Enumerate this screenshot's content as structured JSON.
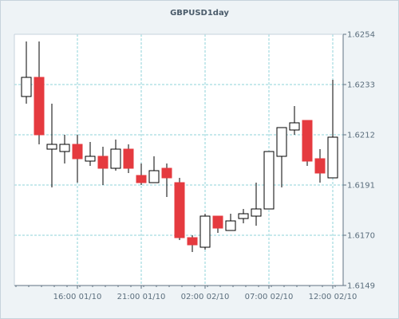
{
  "chart_data": {
    "type": "candlestick",
    "title": "GBPUSD1day",
    "y_ticks": [
      "1.6254",
      "1.6233",
      "1.6212",
      "1.6191",
      "1.6170",
      "1.6149"
    ],
    "x_ticks": [
      "16:00 01/10",
      "21:00 01/10",
      "02:00 02/10",
      "07:00 02/10",
      "12:00 02/10"
    ],
    "ylim": [
      1.6149,
      1.6254
    ],
    "grid": true,
    "colors": {
      "up_fill": "#ffffff",
      "down_fill": "#e53a3f",
      "wick": "#000000",
      "grid": "#8fd3da",
      "axis": "#5f7282"
    },
    "candles": [
      {
        "open": 1.6228,
        "high": 1.6251,
        "low": 1.6225,
        "close": 1.6236
      },
      {
        "open": 1.6236,
        "high": 1.6251,
        "low": 1.6208,
        "close": 1.6212
      },
      {
        "open": 1.6206,
        "high": 1.6225,
        "low": 1.619,
        "close": 1.6208
      },
      {
        "open": 1.6205,
        "high": 1.6212,
        "low": 1.62,
        "close": 1.6208
      },
      {
        "open": 1.6208,
        "high": 1.6212,
        "low": 1.6192,
        "close": 1.6202
      },
      {
        "open": 1.6201,
        "high": 1.6209,
        "low": 1.6199,
        "close": 1.6203
      },
      {
        "open": 1.6203,
        "high": 1.6207,
        "low": 1.6191,
        "close": 1.6198
      },
      {
        "open": 1.6198,
        "high": 1.621,
        "low": 1.6197,
        "close": 1.6206
      },
      {
        "open": 1.6206,
        "high": 1.6208,
        "low": 1.6196,
        "close": 1.6198
      },
      {
        "open": 1.6195,
        "high": 1.62,
        "low": 1.6191,
        "close": 1.6192
      },
      {
        "open": 1.6192,
        "high": 1.6203,
        "low": 1.6192,
        "close": 1.6197
      },
      {
        "open": 1.6198,
        "high": 1.62,
        "low": 1.6186,
        "close": 1.6194
      },
      {
        "open": 1.6192,
        "high": 1.6194,
        "low": 1.6168,
        "close": 1.6169
      },
      {
        "open": 1.6169,
        "high": 1.617,
        "low": 1.6163,
        "close": 1.6166
      },
      {
        "open": 1.6165,
        "high": 1.6179,
        "low": 1.6164,
        "close": 1.6178
      },
      {
        "open": 1.6178,
        "high": 1.6178,
        "low": 1.6171,
        "close": 1.6173
      },
      {
        "open": 1.6172,
        "high": 1.6179,
        "low": 1.6172,
        "close": 1.6176
      },
      {
        "open": 1.6177,
        "high": 1.6181,
        "low": 1.6175,
        "close": 1.6179
      },
      {
        "open": 1.6178,
        "high": 1.6192,
        "low": 1.6174,
        "close": 1.6181
      },
      {
        "open": 1.6181,
        "high": 1.6205,
        "low": 1.6181,
        "close": 1.6205
      },
      {
        "open": 1.6203,
        "high": 1.6215,
        "low": 1.619,
        "close": 1.6215
      },
      {
        "open": 1.6214,
        "high": 1.6224,
        "low": 1.6212,
        "close": 1.6217
      },
      {
        "open": 1.6218,
        "high": 1.6218,
        "low": 1.6199,
        "close": 1.6201
      },
      {
        "open": 1.6202,
        "high": 1.6206,
        "low": 1.6192,
        "close": 1.6196
      },
      {
        "open": 1.6194,
        "high": 1.6235,
        "low": 1.6194,
        "close": 1.6211
      }
    ]
  }
}
